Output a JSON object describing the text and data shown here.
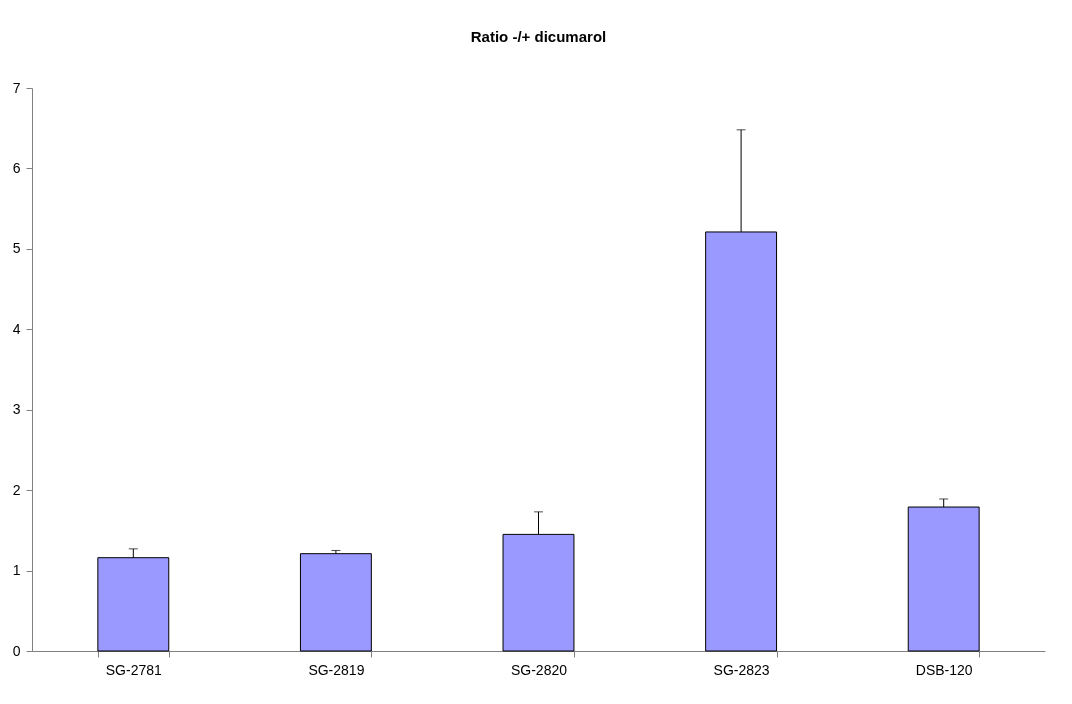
{
  "chart_data": {
    "type": "bar",
    "title": "Ratio -/+ dicumarol",
    "categories": [
      "SG-2781",
      "SG-2819",
      "SG-2820",
      "SG-2823",
      "DSB-120"
    ],
    "values": [
      1.16,
      1.21,
      1.45,
      5.21,
      1.79
    ],
    "errors": [
      [
        1.16,
        1.27
      ],
      [
        1.21,
        1.25
      ],
      [
        1.45,
        1.73
      ],
      [
        5.21,
        6.48
      ],
      [
        1.79,
        1.89
      ]
    ],
    "color": "#9999ff",
    "ylim": [
      0,
      7
    ],
    "yticks": [
      0,
      1,
      2,
      3,
      4,
      5,
      6,
      7
    ],
    "grid": false
  }
}
